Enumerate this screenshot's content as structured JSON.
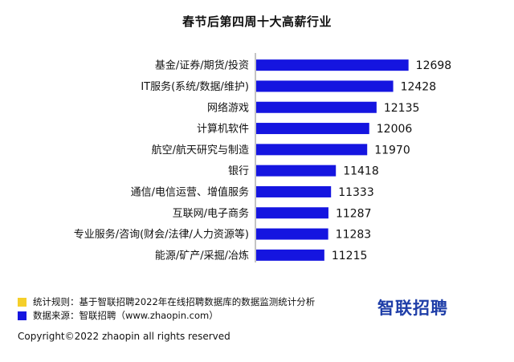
{
  "chart_data": {
    "type": "bar",
    "orientation": "horizontal",
    "title": "春节后第四周十大高薪行业",
    "categories": [
      "基金/证券/期货/投资",
      "IT服务(系统/数据/维护)",
      "网络游戏",
      "计算机软件",
      "航空/航天研究与制造",
      "银行",
      "通信/电信运营、增值服务",
      "互联网/电子商务",
      "专业服务/咨询(财会/法律/人力资源等)",
      "能源/矿产/采掘/冶炼"
    ],
    "values": [
      12698,
      12428,
      12135,
      12006,
      11970,
      11418,
      11333,
      11287,
      11283,
      11215
    ],
    "xlim": [
      10000,
      13000
    ],
    "bar_color": "#1515e0",
    "grid": false
  },
  "notes": {
    "rule_label": "统计规则：基于智联招聘2022年在线招聘数据库的数据监测统计分析",
    "rule_color": "#f5cf2a",
    "source_label": "数据来源：智联招聘（www.zhaopin.com）",
    "source_color": "#1515e0"
  },
  "copyright": "Copyright©2022 zhaopin all rights reserved",
  "logo_text": "智联招聘"
}
